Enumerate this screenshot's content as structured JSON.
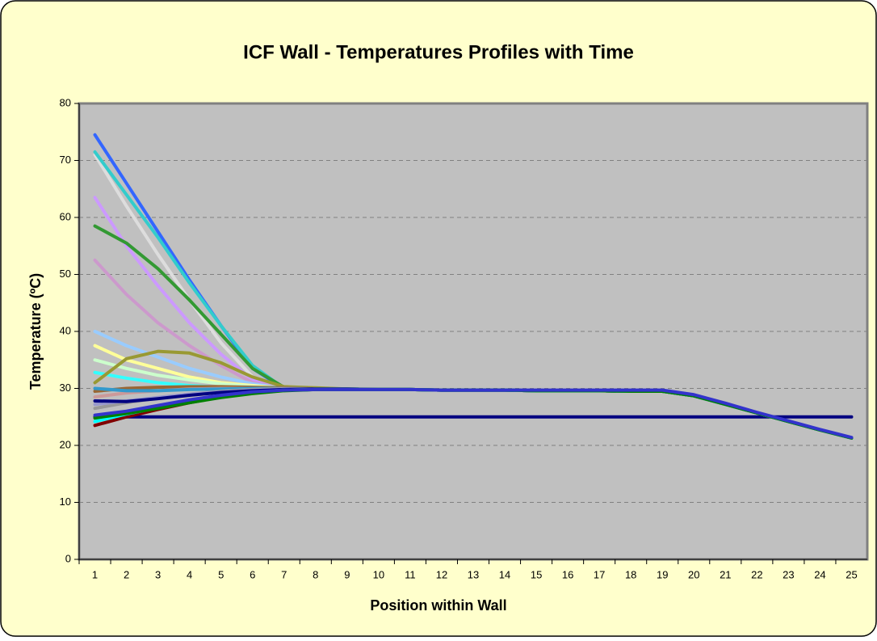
{
  "chart_data": {
    "type": "line",
    "title": "ICF Wall - Temperatures Profiles with Time",
    "x_label": "Position within Wall",
    "y_label": "Temperature (ºC)",
    "categories": [
      "1",
      "2",
      "3",
      "4",
      "5",
      "6",
      "7",
      "8",
      "9",
      "10",
      "11",
      "12",
      "13",
      "14",
      "15",
      "16",
      "17",
      "18",
      "19",
      "20",
      "21",
      "22",
      "23",
      "24",
      "25"
    ],
    "ylim": [
      0,
      80
    ],
    "yticks": [
      0,
      10,
      20,
      30,
      40,
      50,
      60,
      70,
      80
    ],
    "grid": true,
    "series": [
      {
        "color": "#000080",
        "values": [
          25,
          25,
          25,
          25,
          25,
          25,
          25,
          25,
          25,
          25,
          25,
          25,
          25,
          25,
          25,
          25,
          25,
          25,
          25,
          25,
          25,
          25,
          25,
          25,
          25
        ]
      },
      {
        "color": "#dddddd",
        "values": [
          71,
          62,
          53.5,
          45.5,
          38,
          32,
          30,
          29.9,
          29.9,
          29.8,
          29.8,
          29.7,
          29.7,
          29.7,
          29.6,
          29.6,
          29.6,
          29.5,
          29.5,
          28.7,
          27.2,
          25.7,
          24.2,
          22.7,
          21.3
        ]
      },
      {
        "color": "#3366ff",
        "values": [
          74.5,
          66,
          57.5,
          49,
          41,
          33.5,
          30,
          29.9,
          29.9,
          29.8,
          29.8,
          29.7,
          29.7,
          29.7,
          29.6,
          29.6,
          29.6,
          29.5,
          29.5,
          28.7,
          27.2,
          25.7,
          24.2,
          22.7,
          21.3
        ]
      },
      {
        "color": "#33cccc",
        "values": [
          71.5,
          64,
          56.5,
          48.5,
          41,
          34,
          30,
          29.9,
          29.9,
          29.8,
          29.8,
          29.7,
          29.7,
          29.7,
          29.6,
          29.6,
          29.6,
          29.5,
          29.5,
          28.7,
          27.2,
          25.7,
          24.2,
          22.7,
          21.3
        ]
      },
      {
        "color": "#cc99ff",
        "values": [
          63.5,
          55,
          48,
          41.5,
          36,
          31.5,
          30,
          29.9,
          29.9,
          29.8,
          29.8,
          29.7,
          29.7,
          29.7,
          29.6,
          29.6,
          29.6,
          29.5,
          29.5,
          28.7,
          27.2,
          25.7,
          24.2,
          22.7,
          21.3
        ]
      },
      {
        "color": "#339933",
        "values": [
          58.5,
          55.5,
          51,
          45.5,
          39.5,
          33.5,
          30.2,
          30,
          29.9,
          29.8,
          29.8,
          29.7,
          29.7,
          29.7,
          29.6,
          29.6,
          29.6,
          29.5,
          29.5,
          28.7,
          27.2,
          25.7,
          24.2,
          22.7,
          21.3
        ]
      },
      {
        "color": "#cc99cc",
        "values": [
          52.5,
          46.5,
          41.5,
          37.5,
          34,
          31,
          30,
          29.9,
          29.9,
          29.8,
          29.8,
          29.7,
          29.7,
          29.7,
          29.6,
          29.6,
          29.6,
          29.5,
          29.5,
          28.7,
          27.2,
          25.7,
          24.2,
          22.7,
          21.3
        ]
      },
      {
        "color": "#99ccff",
        "values": [
          40,
          37.5,
          35.5,
          33.5,
          32,
          30.8,
          30,
          29.9,
          29.9,
          29.8,
          29.8,
          29.7,
          29.7,
          29.7,
          29.6,
          29.6,
          29.6,
          29.5,
          29.5,
          28.7,
          27.2,
          25.7,
          24.2,
          22.7,
          21.3
        ]
      },
      {
        "color": "#ffff99",
        "values": [
          37.5,
          35,
          33.5,
          32,
          31,
          30.5,
          30,
          29.9,
          29.9,
          29.8,
          29.8,
          29.7,
          29.7,
          29.7,
          29.6,
          29.6,
          29.6,
          29.5,
          29.5,
          28.7,
          27.2,
          25.7,
          24.2,
          22.7,
          21.3
        ]
      },
      {
        "color": "#ccffcc",
        "values": [
          35,
          33.5,
          32.3,
          31.5,
          30.8,
          30.3,
          30,
          29.9,
          29.9,
          29.8,
          29.8,
          29.7,
          29.7,
          29.7,
          29.6,
          29.6,
          29.6,
          29.5,
          29.5,
          28.7,
          27.2,
          25.7,
          24.2,
          22.7,
          21.3
        ]
      },
      {
        "color": "#33ffff",
        "values": [
          32.8,
          31.8,
          31,
          30.5,
          30.2,
          30,
          30,
          29.9,
          29.9,
          29.8,
          29.8,
          29.7,
          29.7,
          29.7,
          29.6,
          29.6,
          29.6,
          29.5,
          29.5,
          28.7,
          27.2,
          25.7,
          24.2,
          22.7,
          21.3
        ]
      },
      {
        "color": "#999933",
        "values": [
          31,
          35.2,
          36.5,
          36.2,
          34.5,
          32,
          30.3,
          30.1,
          29.9,
          29.8,
          29.8,
          29.7,
          29.7,
          29.7,
          29.6,
          29.6,
          29.6,
          29.5,
          29.5,
          28.7,
          27.2,
          25.7,
          24.2,
          22.7,
          21.3
        ]
      },
      {
        "color": "#996633",
        "values": [
          29.5,
          30,
          30.2,
          30.3,
          30.3,
          30.2,
          30.1,
          29.9,
          29.9,
          29.8,
          29.8,
          29.7,
          29.7,
          29.7,
          29.6,
          29.6,
          29.6,
          29.5,
          29.5,
          28.7,
          27.2,
          25.7,
          24.2,
          22.7,
          21.3
        ]
      },
      {
        "color": "#cc9999",
        "values": [
          28.5,
          29.2,
          29.6,
          29.9,
          30,
          30,
          30,
          29.9,
          29.9,
          29.8,
          29.8,
          29.7,
          29.7,
          29.7,
          29.6,
          29.6,
          29.6,
          29.5,
          29.5,
          28.7,
          27.2,
          25.7,
          24.2,
          22.7,
          21.3
        ]
      },
      {
        "color": "#3399cc",
        "values": [
          30,
          29.6,
          29.6,
          29.8,
          29.9,
          30,
          30,
          29.9,
          29.9,
          29.8,
          29.8,
          29.7,
          29.7,
          29.7,
          29.6,
          29.6,
          29.6,
          29.5,
          29.5,
          28.7,
          27.2,
          25.7,
          24.2,
          22.7,
          21.3
        ]
      },
      {
        "color": "#999999",
        "values": [
          26.5,
          27.5,
          28.3,
          29,
          29.5,
          29.8,
          30,
          29.9,
          29.9,
          29.8,
          29.8,
          29.7,
          29.7,
          29.7,
          29.6,
          29.6,
          29.6,
          29.5,
          29.5,
          28.7,
          27.2,
          25.7,
          24.2,
          22.7,
          21.3
        ]
      },
      {
        "color": "#9999cc",
        "values": [
          27.2,
          27.8,
          28.4,
          29,
          29.4,
          29.7,
          29.9,
          29.9,
          29.9,
          29.8,
          29.8,
          29.7,
          29.7,
          29.7,
          29.6,
          29.6,
          29.6,
          29.5,
          29.5,
          28.7,
          27.2,
          25.7,
          24.2,
          22.7,
          21.3
        ]
      },
      {
        "color": "#000080",
        "values": [
          27.8,
          27.7,
          28.2,
          28.8,
          29.3,
          29.6,
          29.8,
          29.9,
          29.9,
          29.8,
          29.8,
          29.7,
          29.7,
          29.7,
          29.6,
          29.6,
          29.6,
          29.5,
          29.5,
          28.7,
          27.2,
          25.7,
          24.2,
          22.7,
          21.3
        ]
      },
      {
        "color": "#800000",
        "values": [
          23.5,
          25,
          26.3,
          27.5,
          28.5,
          29.3,
          29.7,
          29.8,
          29.8,
          29.8,
          29.8,
          29.7,
          29.7,
          29.7,
          29.6,
          29.6,
          29.6,
          29.5,
          29.5,
          28.7,
          27.2,
          25.7,
          24.2,
          22.7,
          21.3
        ]
      },
      {
        "color": "#00ffff",
        "values": [
          24.2,
          25.5,
          26.6,
          27.7,
          28.6,
          29.3,
          29.7,
          29.8,
          29.8,
          29.8,
          29.8,
          29.7,
          29.7,
          29.7,
          29.6,
          29.6,
          29.6,
          29.5,
          29.5,
          28.7,
          27.2,
          25.7,
          24.2,
          22.7,
          21.3
        ]
      },
      {
        "color": "#008000",
        "values": [
          24.8,
          25.6,
          26.5,
          27.5,
          28.4,
          29.1,
          29.6,
          29.8,
          29.8,
          29.8,
          29.8,
          29.7,
          29.7,
          29.7,
          29.6,
          29.6,
          29.6,
          29.5,
          29.5,
          28.7,
          27.2,
          25.7,
          24.2,
          22.7,
          21.3
        ]
      },
      {
        "color": "#3333cc",
        "values": [
          25.3,
          26,
          27,
          28,
          28.8,
          29.4,
          29.7,
          29.8,
          29.8,
          29.8,
          29.8,
          29.7,
          29.7,
          29.7,
          29.7,
          29.7,
          29.7,
          29.7,
          29.7,
          28.9,
          27.4,
          25.8,
          24.3,
          22.8,
          21.4
        ]
      }
    ]
  }
}
